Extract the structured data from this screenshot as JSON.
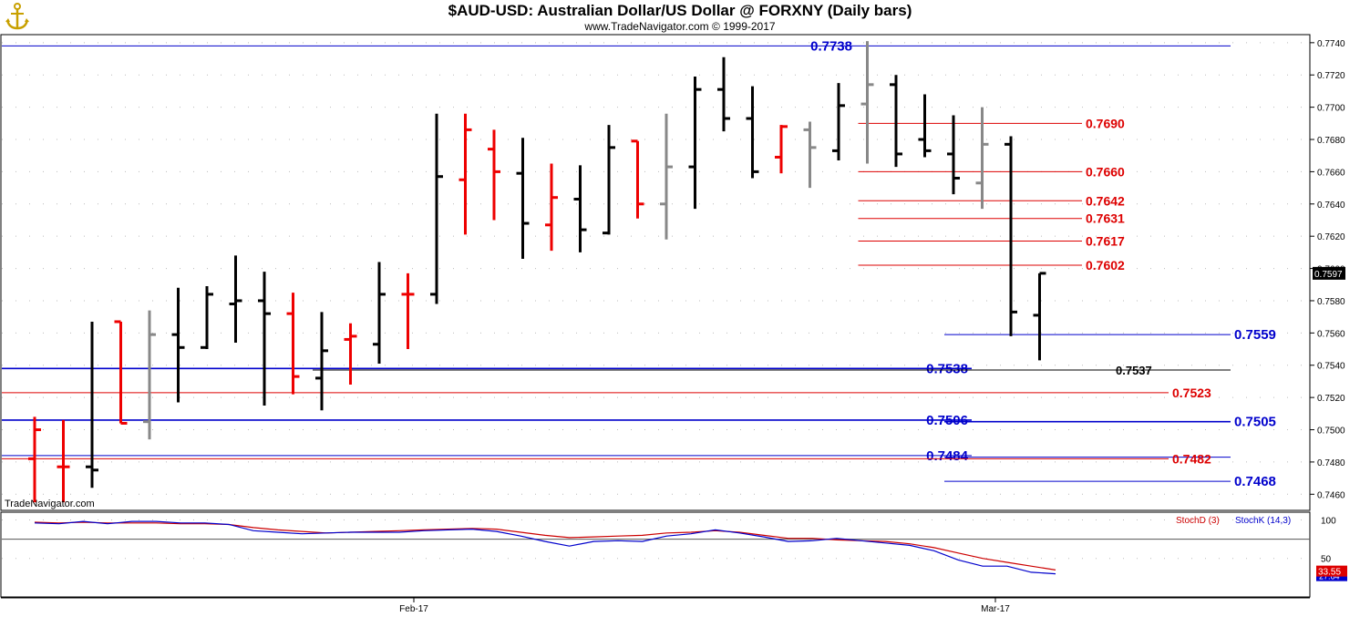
{
  "header": {
    "title": "$AUD-USD:  Australian Dollar/US Dollar @ FORXNY  (Daily bars)",
    "subtitle": "www.TradeNavigator.com © 1999-2017",
    "logo_icon": "anchor-logo-icon"
  },
  "watermark": "TradeNavigator.com",
  "colors": {
    "up_bar": "#000000",
    "down_bar": "#ee0000",
    "neutral_bar": "#888888",
    "blue_level": "#0000cc",
    "red_level": "#dd0000",
    "stoch_d": "#cc0000",
    "stoch_k": "#0000cc"
  },
  "chart_data": [
    {
      "type": "ohlc",
      "title": "$AUD-USD:  Australian Dollar/US Dollar @ FORXNY  (Daily bars)",
      "ylim": [
        0.745,
        0.7745
      ],
      "y_ticks": [
        "0.7740",
        "0.7720",
        "0.7700",
        "0.7680",
        "0.7660",
        "0.7640",
        "0.7620",
        "0.7600",
        "0.7580",
        "0.7560",
        "0.7540",
        "0.7520",
        "0.7500",
        "0.7480",
        "0.7460"
      ],
      "x_labels": [
        "Feb-17",
        "Mar-17"
      ],
      "last_price": "0.7597",
      "bars": [
        {
          "o": 0.7482,
          "h": 0.7508,
          "l": 0.7455,
          "c": 0.75,
          "color": "red"
        },
        {
          "o": 0.7477,
          "h": 0.7506,
          "l": 0.7455,
          "c": 0.7477,
          "color": "red"
        },
        {
          "o": 0.7477,
          "h": 0.7567,
          "l": 0.7464,
          "c": 0.7475,
          "color": "black"
        },
        {
          "o": 0.7567,
          "h": 0.7567,
          "l": 0.7504,
          "c": 0.7504,
          "color": "red"
        },
        {
          "o": 0.7505,
          "h": 0.7574,
          "l": 0.7494,
          "c": 0.7559,
          "color": "gray"
        },
        {
          "o": 0.7559,
          "h": 0.7588,
          "l": 0.7517,
          "c": 0.7551,
          "color": "black"
        },
        {
          "o": 0.7551,
          "h": 0.7589,
          "l": 0.755,
          "c": 0.7584,
          "color": "black"
        },
        {
          "o": 0.7578,
          "h": 0.7608,
          "l": 0.7554,
          "c": 0.758,
          "color": "black"
        },
        {
          "o": 0.758,
          "h": 0.7598,
          "l": 0.7515,
          "c": 0.7572,
          "color": "black"
        },
        {
          "o": 0.7572,
          "h": 0.7585,
          "l": 0.7522,
          "c": 0.7533,
          "color": "red"
        },
        {
          "o": 0.7532,
          "h": 0.7573,
          "l": 0.7512,
          "c": 0.7549,
          "color": "black"
        },
        {
          "o": 0.7556,
          "h": 0.7566,
          "l": 0.7528,
          "c": 0.7558,
          "color": "red"
        },
        {
          "o": 0.7553,
          "h": 0.7604,
          "l": 0.7541,
          "c": 0.7584,
          "color": "black"
        },
        {
          "o": 0.7584,
          "h": 0.7597,
          "l": 0.755,
          "c": 0.7584,
          "color": "red"
        },
        {
          "o": 0.7584,
          "h": 0.7696,
          "l": 0.7578,
          "c": 0.7657,
          "color": "black"
        },
        {
          "o": 0.7655,
          "h": 0.7696,
          "l": 0.7621,
          "c": 0.7686,
          "color": "red"
        },
        {
          "o": 0.7674,
          "h": 0.7686,
          "l": 0.763,
          "c": 0.766,
          "color": "red"
        },
        {
          "o": 0.7659,
          "h": 0.7681,
          "l": 0.7606,
          "c": 0.7628,
          "color": "black"
        },
        {
          "o": 0.7627,
          "h": 0.7665,
          "l": 0.7611,
          "c": 0.7644,
          "color": "red"
        },
        {
          "o": 0.7643,
          "h": 0.7664,
          "l": 0.761,
          "c": 0.7624,
          "color": "black"
        },
        {
          "o": 0.7622,
          "h": 0.7689,
          "l": 0.7621,
          "c": 0.7675,
          "color": "black"
        },
        {
          "o": 0.7679,
          "h": 0.7679,
          "l": 0.7631,
          "c": 0.764,
          "color": "red"
        },
        {
          "o": 0.764,
          "h": 0.7696,
          "l": 0.7618,
          "c": 0.7663,
          "color": "gray"
        },
        {
          "o": 0.7663,
          "h": 0.7719,
          "l": 0.7637,
          "c": 0.7711,
          "color": "black"
        },
        {
          "o": 0.7711,
          "h": 0.7731,
          "l": 0.7685,
          "c": 0.7693,
          "color": "black"
        },
        {
          "o": 0.7693,
          "h": 0.7713,
          "l": 0.7656,
          "c": 0.766,
          "color": "black"
        },
        {
          "o": 0.7669,
          "h": 0.7689,
          "l": 0.7659,
          "c": 0.7688,
          "color": "red"
        },
        {
          "o": 0.7686,
          "h": 0.7691,
          "l": 0.765,
          "c": 0.7675,
          "color": "gray"
        },
        {
          "o": 0.7673,
          "h": 0.7715,
          "l": 0.7667,
          "c": 0.7701,
          "color": "black"
        },
        {
          "o": 0.7702,
          "h": 0.7741,
          "l": 0.7665,
          "c": 0.7714,
          "color": "gray"
        },
        {
          "o": 0.7714,
          "h": 0.772,
          "l": 0.7663,
          "c": 0.7671,
          "color": "black"
        },
        {
          "o": 0.768,
          "h": 0.7708,
          "l": 0.7669,
          "c": 0.7673,
          "color": "black"
        },
        {
          "o": 0.7671,
          "h": 0.7695,
          "l": 0.7646,
          "c": 0.7656,
          "color": "black"
        },
        {
          "o": 0.7653,
          "h": 0.77,
          "l": 0.7637,
          "c": 0.7677,
          "color": "gray"
        },
        {
          "o": 0.7677,
          "h": 0.7682,
          "l": 0.7558,
          "c": 0.7573,
          "color": "black"
        },
        {
          "o": 0.7571,
          "h": 0.7597,
          "l": 0.7543,
          "c": 0.7597,
          "color": "black"
        }
      ],
      "levels": [
        {
          "value": 0.7738,
          "label": "0.7738",
          "color": "blue",
          "from_bar": -1,
          "to_bar": 40,
          "label_side": "left"
        },
        {
          "value": 0.769,
          "label": "0.7690",
          "color": "red",
          "from_bar": 29,
          "to_bar": 35,
          "label_side": "right"
        },
        {
          "value": 0.766,
          "label": "0.7660",
          "color": "red",
          "from_bar": 29,
          "to_bar": 35,
          "label_side": "right"
        },
        {
          "value": 0.7642,
          "label": "0.7642",
          "color": "red",
          "from_bar": 29,
          "to_bar": 35,
          "label_side": "right"
        },
        {
          "value": 0.7631,
          "label": "0.7631",
          "color": "red",
          "from_bar": 29,
          "to_bar": 35,
          "label_side": "right"
        },
        {
          "value": 0.7617,
          "label": "0.7617",
          "color": "red",
          "from_bar": 29,
          "to_bar": 35,
          "label_side": "right"
        },
        {
          "value": 0.7602,
          "label": "0.7602",
          "color": "red",
          "from_bar": 29,
          "to_bar": 35,
          "label_side": "right"
        },
        {
          "value": 0.7559,
          "label": "0.7559",
          "color": "blue",
          "from_bar": 32,
          "to_bar": 40,
          "label_side": "right"
        },
        {
          "value": 0.7538,
          "label": "0.7538",
          "color": "blue",
          "from_bar": -1,
          "to_bar": 32,
          "label_side": "left"
        },
        {
          "value": 0.7537,
          "label": "0.7537",
          "color": "black",
          "from_bar": 10,
          "to_bar": 40,
          "label_side": "mid"
        },
        {
          "value": 0.7523,
          "label": "0.7523",
          "color": "red",
          "from_bar": -1,
          "to_bar": 37,
          "label_side": "right"
        },
        {
          "value": 0.7506,
          "label": "0.7506",
          "color": "blue",
          "from_bar": -1,
          "to_bar": 32,
          "label_side": "left"
        },
        {
          "value": 0.7505,
          "label": "0.7505",
          "color": "blue",
          "from_bar": 32,
          "to_bar": 40,
          "label_side": "right"
        },
        {
          "value": 0.7484,
          "label": "0.7484",
          "color": "blue",
          "from_bar": -1,
          "to_bar": 32,
          "label_side": "left"
        },
        {
          "value": 0.7483,
          "label": "",
          "color": "blue",
          "from_bar": 32,
          "to_bar": 40,
          "label_side": "none"
        },
        {
          "value": 0.7482,
          "label": "0.7482",
          "color": "red",
          "from_bar": -1,
          "to_bar": 37,
          "label_side": "right"
        },
        {
          "value": 0.7468,
          "label": "0.7468",
          "color": "blue",
          "from_bar": 32,
          "to_bar": 40,
          "label_side": "right"
        }
      ]
    },
    {
      "type": "line",
      "title": "Stochastic",
      "ylim": [
        0,
        110
      ],
      "y_ticks": [
        "100",
        "50"
      ],
      "reference_line": 75,
      "legend": [
        "StochD (3)",
        "StochK (14,3)"
      ],
      "series": [
        {
          "name": "StochD (3)",
          "color": "red",
          "values": [
            97,
            96,
            97,
            96,
            96,
            96,
            95,
            95,
            94,
            90,
            87,
            85,
            83,
            84,
            85,
            86,
            87,
            88,
            89,
            88,
            84,
            80,
            77,
            78,
            79,
            80,
            83,
            84,
            86,
            84,
            80,
            76,
            76,
            74,
            73,
            72,
            69,
            64,
            57,
            50,
            45,
            40,
            35
          ]
        },
        {
          "name": "StochK (14,3)",
          "color": "blue",
          "values": [
            96,
            95,
            98,
            95,
            98,
            98,
            96,
            96,
            94,
            86,
            84,
            82,
            83,
            84,
            84,
            84,
            86,
            87,
            88,
            85,
            79,
            72,
            66,
            72,
            73,
            72,
            79,
            82,
            87,
            83,
            78,
            72,
            73,
            76,
            73,
            70,
            67,
            60,
            48,
            40,
            40,
            32,
            30
          ]
        }
      ],
      "last_values": [
        "33.55",
        "27.64"
      ]
    }
  ]
}
